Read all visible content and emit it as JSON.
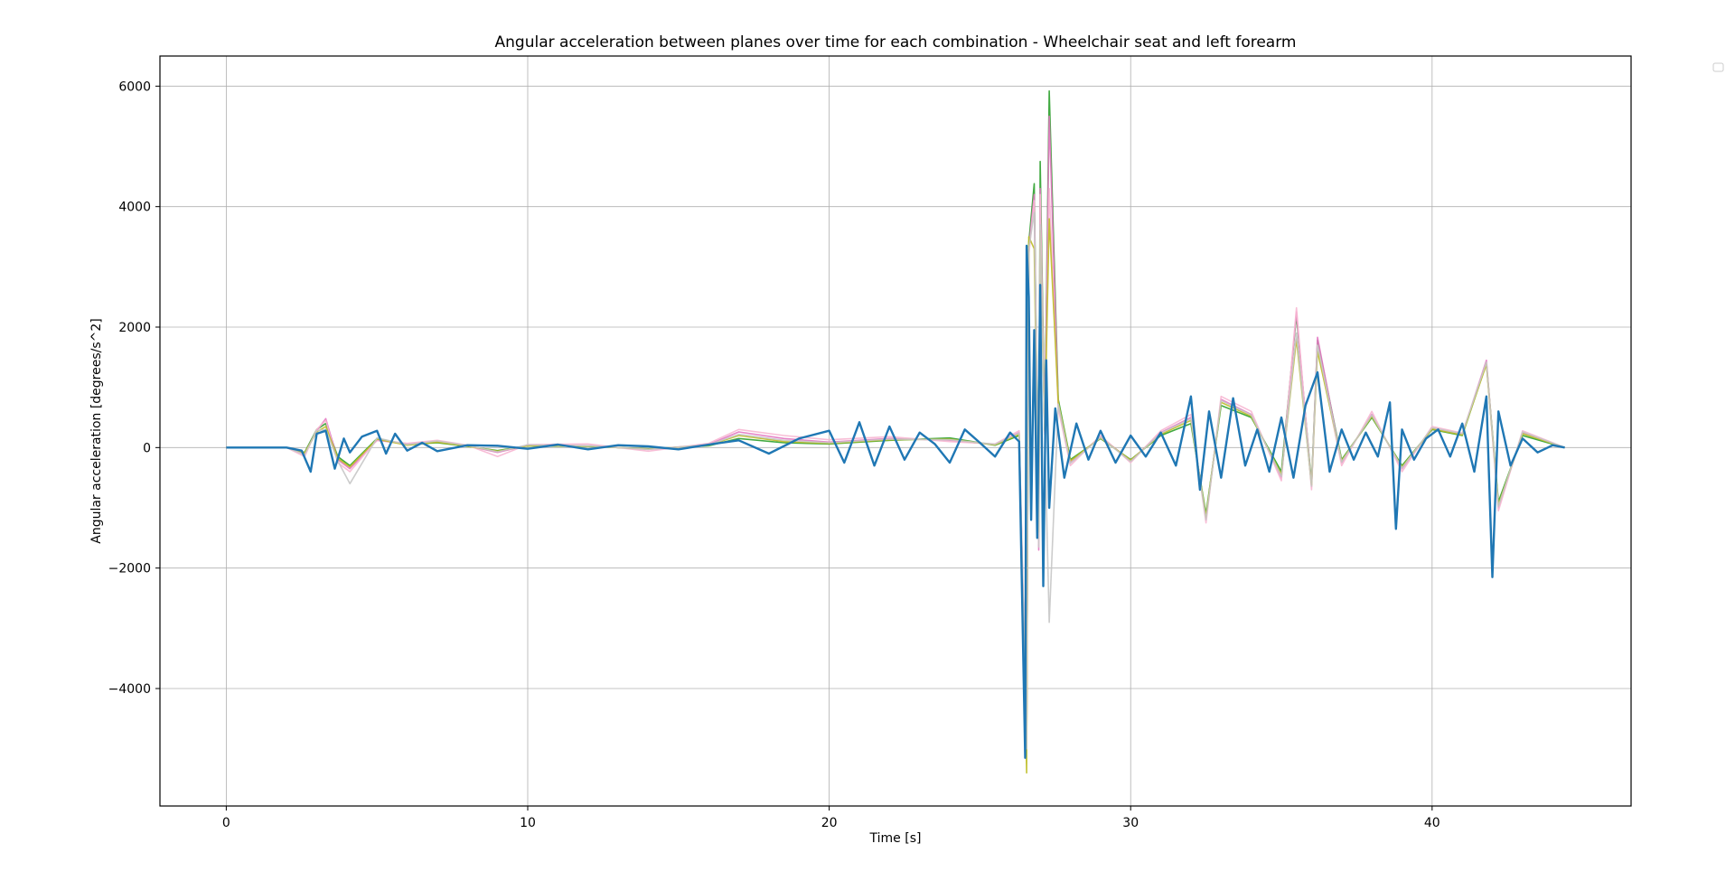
{
  "chart_data": {
    "type": "line",
    "title": "Angular acceleration between planes over time for each combination - Wheelchair seat and left forearm",
    "xlabel": "Time [s]",
    "ylabel": "Angular acceleration [degrees/s^2]",
    "xlim": [
      -2.2,
      46.6
    ],
    "ylim": [
      -5950,
      6500
    ],
    "xticks": [
      0,
      10,
      20,
      30,
      40
    ],
    "yticks": [
      -4000,
      -2000,
      0,
      2000,
      4000,
      6000
    ],
    "grid": true,
    "legend": "top-right (empty)",
    "series": [
      {
        "color": "#2ca02c",
        "x": [
          0,
          1,
          2,
          2.6,
          3.0,
          3.3,
          3.7,
          4.1,
          5,
          6,
          7,
          8,
          9,
          10,
          12,
          14,
          16,
          17.0,
          18.5,
          20,
          22,
          24,
          25.5,
          26.3,
          26.55,
          26.62,
          26.8,
          26.95,
          27.0,
          27.15,
          27.3,
          27.6,
          28,
          29,
          30,
          31,
          32,
          32.5,
          33,
          34,
          35,
          35.5,
          36.0,
          36.2,
          37,
          38,
          39,
          40,
          41,
          41.8,
          42.2,
          43,
          44.4
        ],
        "y": [
          0,
          0,
          0,
          -80,
          300,
          400,
          -150,
          -300,
          150,
          50,
          80,
          20,
          -50,
          30,
          20,
          -20,
          30,
          150,
          80,
          60,
          120,
          160,
          40,
          200,
          -5000,
          3400,
          4380,
          -1500,
          4750,
          300,
          5920,
          800,
          -200,
          150,
          -200,
          200,
          400,
          -1100,
          700,
          500,
          -400,
          2200,
          -600,
          1780,
          -200,
          500,
          -300,
          300,
          200,
          1400,
          -900,
          200,
          0
        ]
      },
      {
        "color": "#e377c2",
        "x": [
          0,
          1,
          2,
          2.6,
          3.0,
          3.3,
          3.7,
          4.1,
          5,
          6,
          7,
          8,
          9,
          10,
          12,
          14,
          16,
          17.0,
          18.5,
          20,
          22,
          24,
          25.5,
          26.3,
          26.55,
          26.62,
          26.8,
          26.95,
          27.0,
          27.15,
          27.3,
          27.6,
          28,
          29,
          30,
          31,
          32,
          32.5,
          33,
          34,
          35,
          35.5,
          36.0,
          36.2,
          37,
          38,
          39,
          40,
          41,
          41.8,
          42.2,
          43,
          44.4
        ],
        "y": [
          0,
          0,
          0,
          -100,
          280,
          480,
          -200,
          -350,
          120,
          60,
          100,
          30,
          -80,
          40,
          30,
          -30,
          50,
          260,
          150,
          90,
          150,
          120,
          50,
          250,
          -4900,
          3300,
          4200,
          -1700,
          4300,
          250,
          5500,
          700,
          -250,
          180,
          -220,
          250,
          500,
          -1200,
          800,
          550,
          -500,
          2250,
          -650,
          1830,
          -250,
          550,
          -350,
          320,
          220,
          1450,
          -1000,
          250,
          0
        ]
      },
      {
        "color": "#f7b6d2",
        "x": [
          0,
          1,
          2,
          2.6,
          3.0,
          3.3,
          3.7,
          4.1,
          5,
          6,
          7,
          8,
          9,
          10,
          12,
          14,
          16,
          17.0,
          18.5,
          20,
          22,
          24,
          25.5,
          26.3,
          26.55,
          26.62,
          26.8,
          26.95,
          27.0,
          27.15,
          27.3,
          27.6,
          28,
          29,
          30,
          31,
          32,
          32.5,
          33,
          34,
          35,
          35.5,
          36.0,
          36.2,
          37,
          38,
          39,
          40,
          41,
          41.8,
          42.2,
          43,
          44.4
        ],
        "y": [
          0,
          0,
          0,
          -150,
          300,
          450,
          -250,
          -400,
          130,
          70,
          120,
          40,
          -150,
          50,
          60,
          -60,
          70,
          300,
          200,
          130,
          180,
          100,
          60,
          280,
          -4800,
          3200,
          4100,
          -1600,
          4200,
          220,
          4300,
          650,
          -300,
          200,
          -250,
          280,
          550,
          -1250,
          850,
          600,
          -550,
          2320,
          -700,
          1700,
          -300,
          600,
          -400,
          350,
          240,
          1400,
          -1050,
          280,
          0
        ]
      },
      {
        "color": "#bcbd22",
        "x": [
          0,
          1,
          2,
          2.6,
          3.0,
          3.3,
          3.7,
          4.1,
          5,
          6,
          7,
          8,
          9,
          10,
          12,
          14,
          16,
          17.0,
          18.5,
          20,
          22,
          24,
          25.5,
          26.3,
          26.55,
          26.62,
          26.8,
          26.95,
          27.0,
          27.15,
          27.3,
          27.6,
          28,
          29,
          30,
          31,
          32,
          32.5,
          33,
          34,
          35,
          35.5,
          36.0,
          36.2,
          37,
          38,
          39,
          40,
          41,
          41.8,
          42.2,
          43,
          44.4
        ],
        "y": [
          0,
          0,
          0,
          -90,
          260,
          350,
          -180,
          -320,
          140,
          40,
          90,
          25,
          -60,
          30,
          25,
          -25,
          40,
          200,
          100,
          70,
          130,
          140,
          45,
          220,
          -5400,
          3500,
          3300,
          -1400,
          3600,
          280,
          3800,
          750,
          -220,
          160,
          -210,
          220,
          450,
          -1150,
          750,
          520,
          -450,
          1800,
          -620,
          1600,
          -220,
          520,
          -320,
          310,
          210,
          1380,
          -950,
          230,
          0
        ]
      },
      {
        "color": "#c7c7c7",
        "x": [
          0,
          1,
          2,
          2.6,
          3.0,
          3.3,
          3.7,
          4.1,
          5,
          6,
          7,
          8,
          9,
          10,
          12,
          14,
          16,
          17.0,
          18.5,
          20,
          22,
          24,
          25.5,
          26.3,
          26.55,
          26.62,
          26.8,
          26.95,
          27.0,
          27.15,
          27.3,
          27.6,
          28,
          29,
          30,
          31,
          32,
          32.5,
          33,
          34,
          35,
          35.5,
          36.0,
          36.2,
          37,
          38,
          39,
          40,
          41,
          41.8,
          42.2,
          43,
          44.4
        ],
        "y": [
          0,
          0,
          0,
          -120,
          280,
          300,
          -220,
          -600,
          160,
          50,
          110,
          35,
          -70,
          45,
          30,
          -30,
          45,
          220,
          120,
          80,
          140,
          130,
          55,
          240,
          -5000,
          3300,
          3900,
          -1650,
          3700,
          260,
          -2900,
          720,
          -260,
          170,
          -230,
          240,
          480,
          -1200,
          780,
          540,
          -480,
          1900,
          -640,
          1700,
          -240,
          540,
          -340,
          330,
          230,
          1420,
          -980,
          260,
          0
        ]
      },
      {
        "color": "#1f77b4",
        "x": [
          0,
          1,
          2,
          2.5,
          2.8,
          3.0,
          3.3,
          3.6,
          3.9,
          4.1,
          4.5,
          5.0,
          5.3,
          5.6,
          6.0,
          6.5,
          7.0,
          8.0,
          9.0,
          10.0,
          11.0,
          12.0,
          13.0,
          14.0,
          15.0,
          16.0,
          17.0,
          18.0,
          19.0,
          20.0,
          20.5,
          21.0,
          21.5,
          22.0,
          22.5,
          23.0,
          23.5,
          24.0,
          24.5,
          25.0,
          25.5,
          26.0,
          26.3,
          26.5,
          26.55,
          26.62,
          26.7,
          26.8,
          26.9,
          27.0,
          27.1,
          27.2,
          27.3,
          27.5,
          27.8,
          28.2,
          28.6,
          29.0,
          29.5,
          30.0,
          30.5,
          31.0,
          31.5,
          32.0,
          32.3,
          32.6,
          33.0,
          33.4,
          33.8,
          34.2,
          34.6,
          35.0,
          35.4,
          35.8,
          36.2,
          36.6,
          37.0,
          37.4,
          37.8,
          38.2,
          38.6,
          38.8,
          39.0,
          39.4,
          39.8,
          40.2,
          40.6,
          41.0,
          41.4,
          41.8,
          42.0,
          42.2,
          42.6,
          43.0,
          43.5,
          44.0,
          44.4
        ],
        "y": [
          0,
          0,
          0,
          -50,
          -400,
          230,
          280,
          -350,
          150,
          -80,
          180,
          280,
          -100,
          230,
          -50,
          80,
          -60,
          40,
          30,
          -20,
          50,
          -30,
          40,
          20,
          -30,
          50,
          120,
          -100,
          150,
          280,
          -250,
          420,
          -300,
          350,
          -200,
          250,
          60,
          -250,
          300,
          80,
          -150,
          250,
          100,
          -5150,
          3350,
          2500,
          -1200,
          1950,
          -1500,
          2700,
          -2300,
          1450,
          -1000,
          650,
          -500,
          400,
          -200,
          280,
          -250,
          200,
          -150,
          250,
          -300,
          850,
          -700,
          600,
          -500,
          820,
          -300,
          300,
          -400,
          500,
          -500,
          700,
          1250,
          -400,
          300,
          -200,
          250,
          -150,
          750,
          -1350,
          300,
          -200,
          150,
          300,
          -150,
          400,
          -400,
          850,
          -2150,
          600,
          -300,
          150,
          -80,
          40,
          0
        ]
      }
    ]
  }
}
